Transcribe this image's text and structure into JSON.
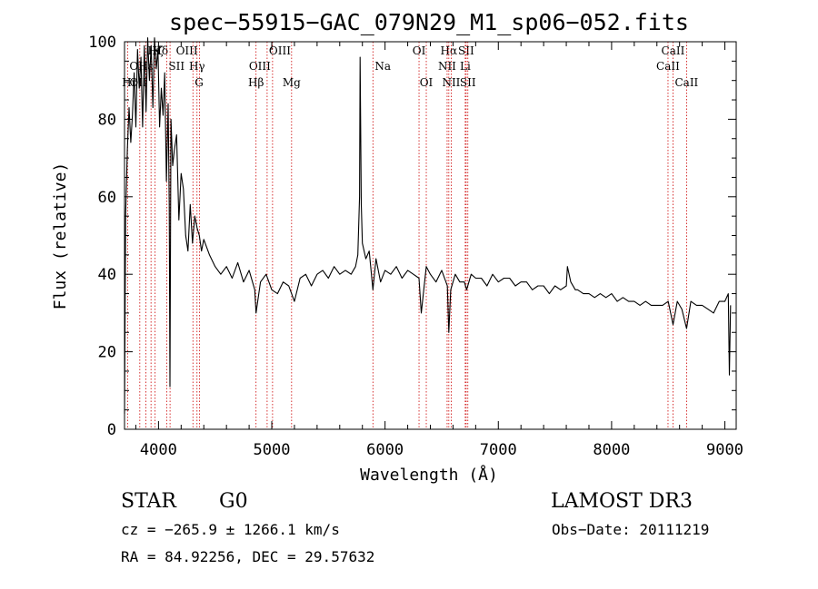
{
  "chart_data": {
    "type": "line",
    "title": "spec−55915−GAC_079N29_M1_sp06−052.fits",
    "xlabel": "Wavelength (Å)",
    "ylabel": "Flux (relative)",
    "xlim": [
      3700,
      9100
    ],
    "ylim": [
      0,
      100
    ],
    "xticks": [
      4000,
      5000,
      6000,
      7000,
      8000,
      9000
    ],
    "yticks": [
      0,
      20,
      40,
      60,
      80,
      100
    ],
    "grid": false,
    "line_color": "#000000",
    "marker_color": "#cc0000",
    "series": [
      {
        "name": "spectrum",
        "x": [
          3700,
          3710,
          3725,
          3740,
          3755,
          3770,
          3785,
          3800,
          3815,
          3830,
          3845,
          3860,
          3875,
          3890,
          3905,
          3920,
          3935,
          3950,
          3965,
          3980,
          3995,
          4010,
          4025,
          4040,
          4055,
          4070,
          4085,
          4095,
          4101,
          4110,
          4125,
          4140,
          4160,
          4180,
          4200,
          4220,
          4240,
          4260,
          4280,
          4300,
          4320,
          4340,
          4360,
          4380,
          4400,
          4450,
          4500,
          4550,
          4600,
          4650,
          4700,
          4750,
          4800,
          4850,
          4861,
          4900,
          4950,
          5000,
          5050,
          5100,
          5150,
          5200,
          5250,
          5300,
          5350,
          5400,
          5450,
          5500,
          5550,
          5600,
          5650,
          5700,
          5740,
          5760,
          5775,
          5780,
          5790,
          5800,
          5830,
          5860,
          5893,
          5920,
          5960,
          6000,
          6050,
          6100,
          6150,
          6200,
          6250,
          6300,
          6320,
          6364,
          6400,
          6450,
          6500,
          6550,
          6563,
          6580,
          6620,
          6660,
          6700,
          6720,
          6760,
          6800,
          6850,
          6900,
          6950,
          7000,
          7050,
          7100,
          7150,
          7200,
          7250,
          7300,
          7350,
          7400,
          7450,
          7500,
          7550,
          7600,
          7610,
          7640,
          7680,
          7700,
          7750,
          7800,
          7850,
          7900,
          7950,
          8000,
          8050,
          8100,
          8150,
          8200,
          8250,
          8300,
          8350,
          8400,
          8450,
          8500,
          8542,
          8580,
          8620,
          8662,
          8700,
          8750,
          8800,
          8850,
          8900,
          8950,
          9000,
          9030,
          9040,
          9050
        ],
        "y": [
          4,
          55,
          72,
          83,
          74,
          81,
          92,
          78,
          98,
          88,
          96,
          78,
          99,
          82,
          101,
          90,
          99,
          83,
          101,
          93,
          98,
          78,
          88,
          81,
          92,
          64,
          84,
          58,
          11,
          80,
          68,
          72,
          76,
          54,
          66,
          62,
          50,
          46,
          58,
          48,
          55,
          52,
          50,
          46,
          49,
          45,
          42,
          40,
          42,
          39,
          43,
          38,
          41,
          36,
          30,
          38,
          40,
          36,
          35,
          38,
          37,
          33,
          39,
          40,
          37,
          40,
          41,
          39,
          42,
          40,
          41,
          40,
          42,
          45,
          60,
          96,
          58,
          48,
          44,
          46,
          36,
          44,
          38,
          41,
          40,
          42,
          39,
          41,
          40,
          39,
          30,
          42,
          40,
          38,
          41,
          37,
          25,
          36,
          40,
          38,
          38,
          36,
          40,
          39,
          39,
          37,
          40,
          38,
          39,
          39,
          37,
          38,
          38,
          36,
          37,
          37,
          35,
          37,
          36,
          37,
          42,
          38,
          36,
          36,
          35,
          35,
          34,
          35,
          34,
          35,
          33,
          34,
          33,
          33,
          32,
          33,
          32,
          32,
          32,
          33,
          27,
          33,
          31,
          26,
          33,
          32,
          32,
          31,
          30,
          33,
          33,
          35,
          14,
          32
        ]
      }
    ],
    "line_markers": [
      {
        "label": "Hζ",
        "x": 3889,
        "row": 0,
        "anchor": "start"
      },
      {
        "label": "K",
        "x": 3934,
        "row": 0,
        "anchor": "start"
      },
      {
        "label": "Hδ",
        "x": 4102,
        "row": 0,
        "anchor": "end"
      },
      {
        "label": "OIII",
        "x": 4363,
        "row": 0,
        "anchor": "end"
      },
      {
        "label": "OIII",
        "x": 4959,
        "row": 0,
        "anchor": "start"
      },
      {
        "label": "OI",
        "x": 6300,
        "row": 0,
        "anchor": "middle"
      },
      {
        "label": "Hα",
        "x": 6563,
        "row": 0,
        "anchor": "middle"
      },
      {
        "label": "SII",
        "x": 6716,
        "row": 0,
        "anchor": "middle"
      },
      {
        "label": "CaII",
        "x": 8542,
        "row": 0,
        "anchor": "middle"
      },
      {
        "label": "OII",
        "x": 3727,
        "row": 1,
        "anchor": "start"
      },
      {
        "label": "Hε",
        "x": 3970,
        "row": 1,
        "anchor": "end"
      },
      {
        "label": "SII",
        "x": 4072,
        "row": 1,
        "anchor": "start"
      },
      {
        "label": "Hγ",
        "x": 4340,
        "row": 1,
        "anchor": "middle"
      },
      {
        "label": "OIII",
        "x": 5007,
        "row": 1,
        "anchor": "end"
      },
      {
        "label": "Na",
        "x": 5893,
        "row": 1,
        "anchor": "start"
      },
      {
        "label": "NII",
        "x": 6548,
        "row": 1,
        "anchor": "middle"
      },
      {
        "label": "Li",
        "x": 6708,
        "row": 1,
        "anchor": "middle"
      },
      {
        "label": "CaII",
        "x": 8498,
        "row": 1,
        "anchor": "middle"
      },
      {
        "label": "OII",
        "x": 3727,
        "row": 2,
        "anchor": "start"
      },
      {
        "label": "Hη",
        "x": 3835,
        "row": 2,
        "anchor": "end"
      },
      {
        "label": "G",
        "x": 4304,
        "row": 2,
        "anchor": "start"
      },
      {
        "label": "Hβ",
        "x": 4861,
        "row": 2,
        "anchor": "middle"
      },
      {
        "label": "Mg",
        "x": 5175,
        "row": 2,
        "anchor": "middle"
      },
      {
        "label": "OI",
        "x": 6364,
        "row": 2,
        "anchor": "middle"
      },
      {
        "label": "NII",
        "x": 6584,
        "row": 2,
        "anchor": "middle"
      },
      {
        "label": "SII",
        "x": 6731,
        "row": 2,
        "anchor": "middle"
      },
      {
        "label": "CaII",
        "x": 8662,
        "row": 2,
        "anchor": "middle"
      }
    ]
  },
  "footer": {
    "object_class": "STAR",
    "subclass": "G0",
    "survey": "LAMOST DR3",
    "cz_line": "cz = −265.9 ± 1266.1 km/s",
    "obs_date": "Obs−Date: 20111219",
    "coords": "RA =  84.92256, DEC =  29.57632"
  }
}
